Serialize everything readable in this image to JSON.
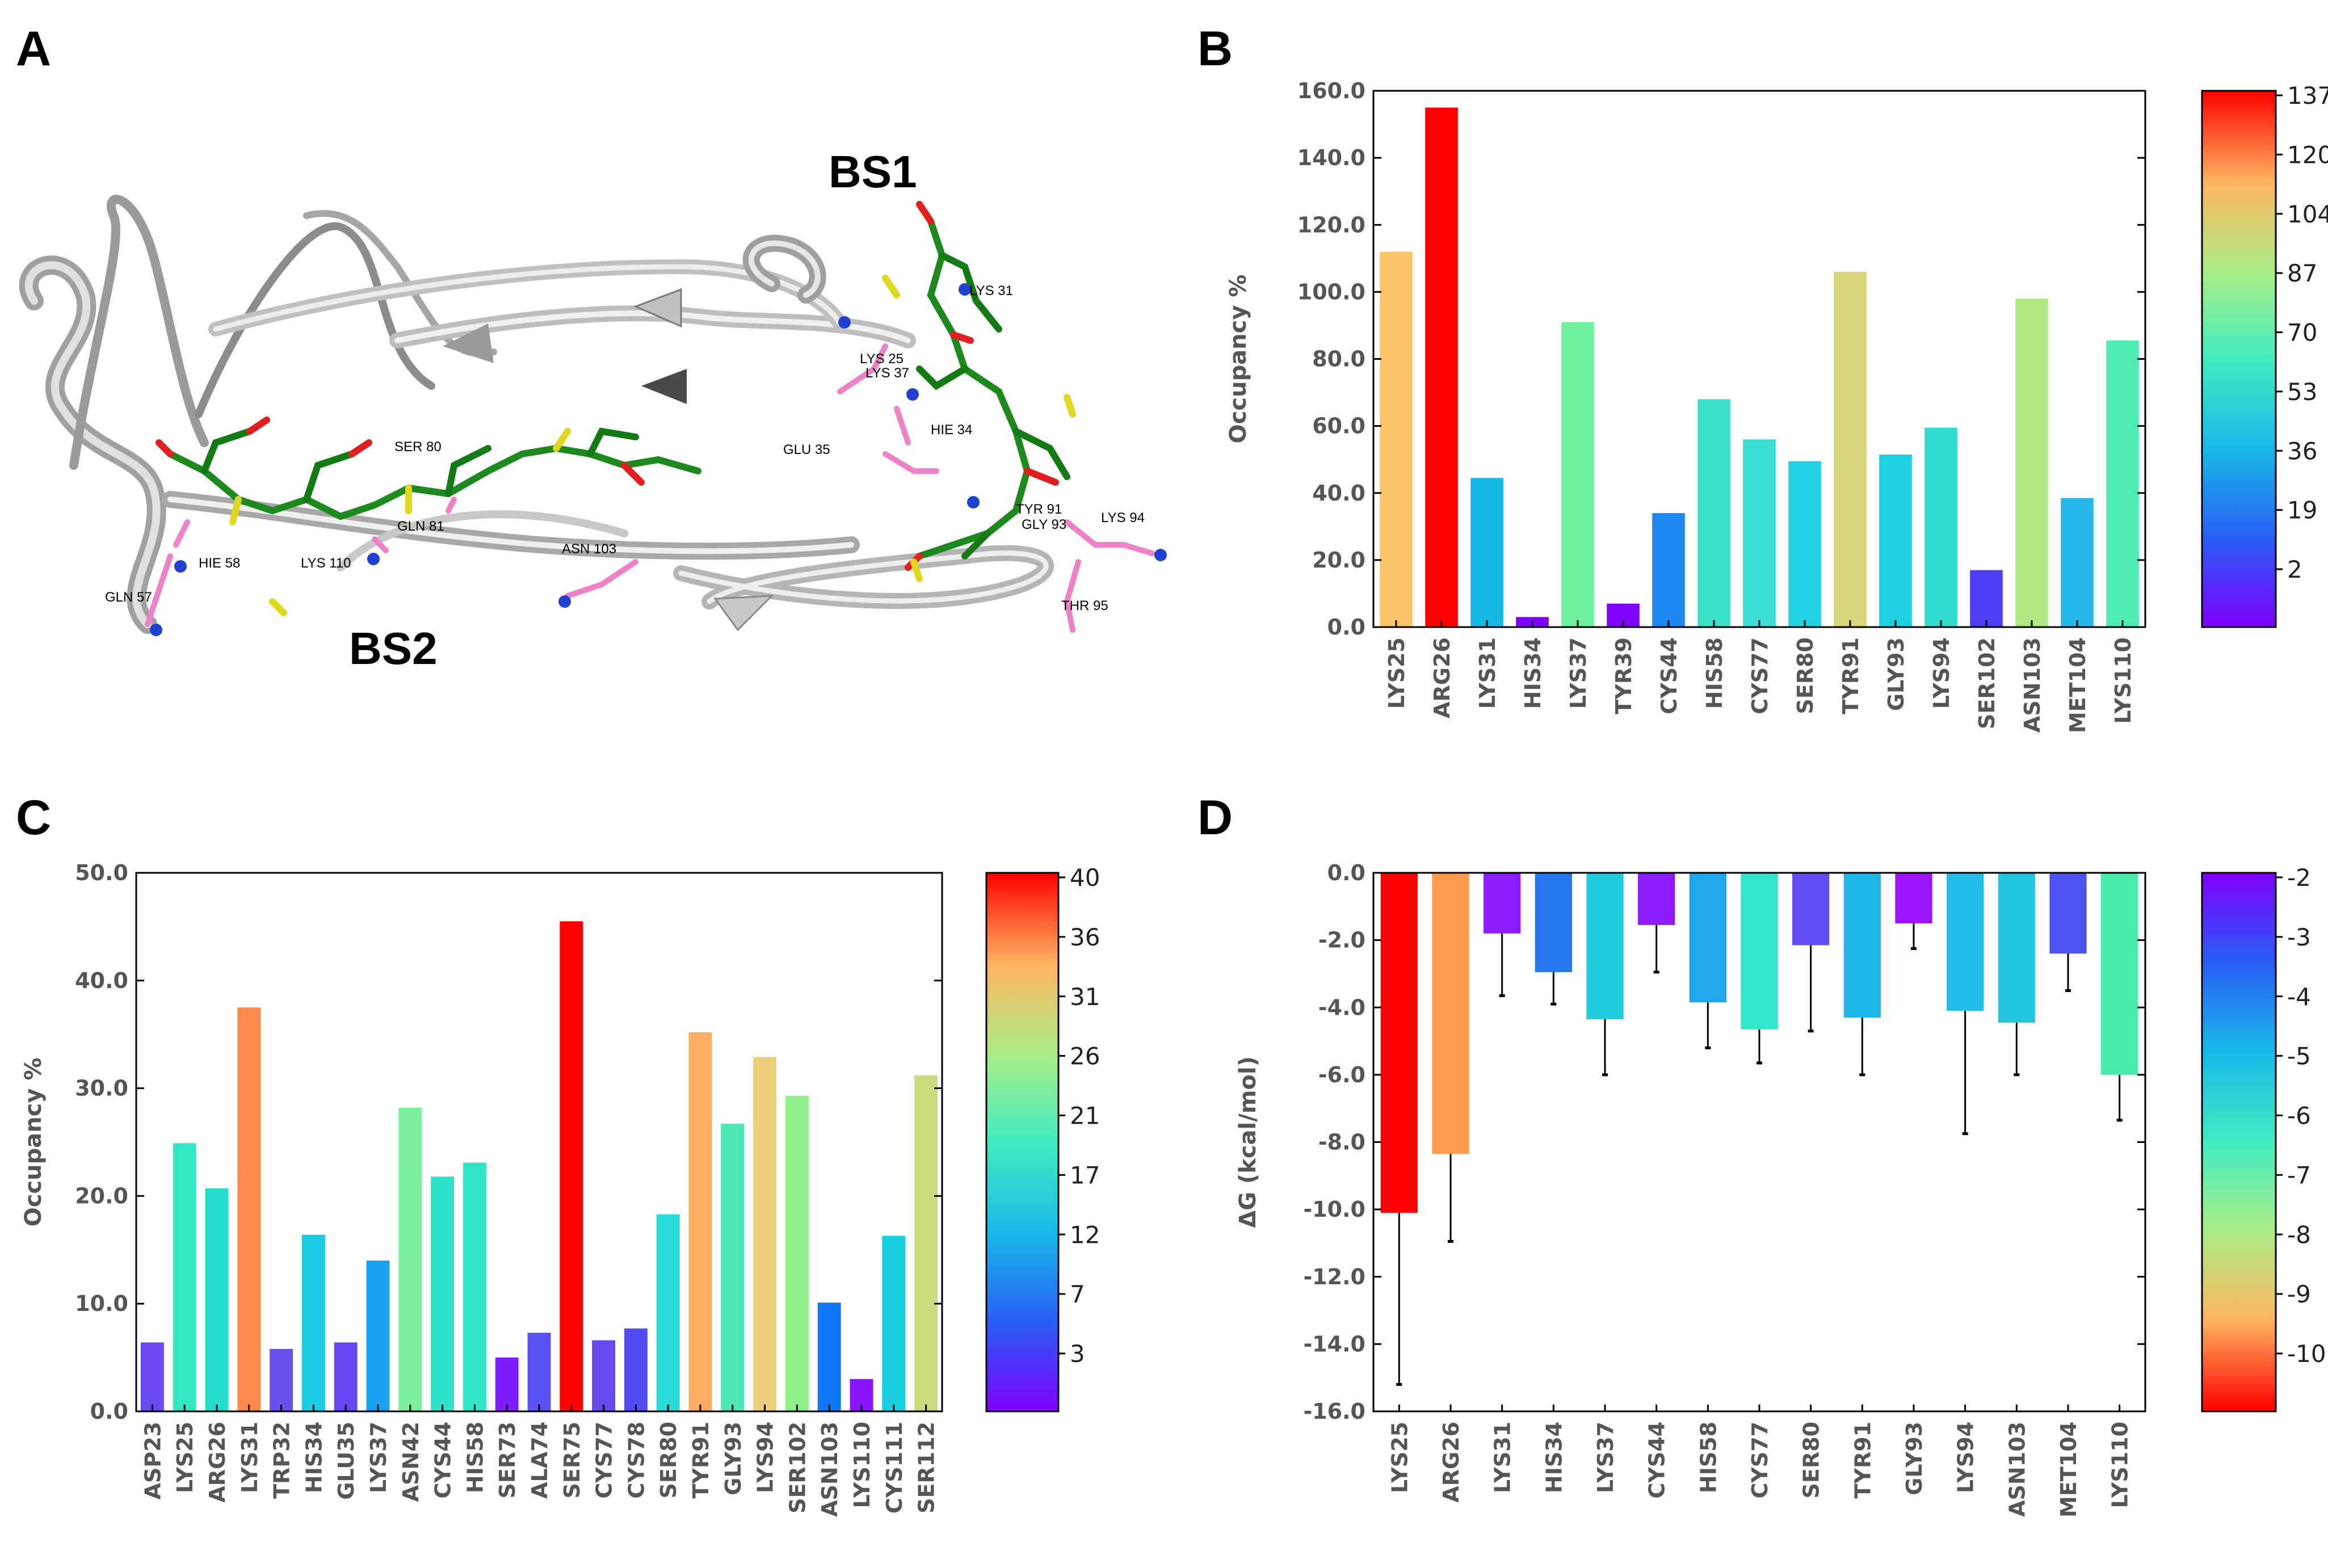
{
  "panels": [
    {
      "letter": "A"
    },
    {
      "letter": "B"
    },
    {
      "letter": "C"
    },
    {
      "letter": "D"
    }
  ],
  "structure": {
    "binding_sites": [
      "BS1",
      "BS2"
    ],
    "residue_labels": [
      "LYS 31",
      "LYS 25",
      "LYS 37",
      "HIE 34",
      "GLU 35",
      "TYR 91",
      "GLY 93",
      "LYS 94",
      "THR 95",
      "ASN 103",
      "SER 80",
      "GLN 81",
      "LYS 110",
      "HIE 58",
      "GLN 57"
    ]
  },
  "chart_data": [
    {
      "panel": "B",
      "type": "bar",
      "ylabel": "Occupancy %",
      "ylim": [
        0,
        160
      ],
      "yticks": [
        "0.0",
        "20.0",
        "40.0",
        "60.0",
        "80.0",
        "100.0",
        "120.0",
        "140.0",
        "160.0"
      ],
      "categories": [
        "LYS25",
        "ARG26",
        "LYS31",
        "HIS34",
        "LYS37",
        "TYR39",
        "CYS44",
        "HIS58",
        "CYS77",
        "SER80",
        "TYR91",
        "GLY93",
        "LYS94",
        "SER102",
        "ASN103",
        "MET104",
        "LYS110"
      ],
      "values": [
        112,
        155,
        44.5,
        3,
        91,
        7,
        34,
        68,
        56,
        49.5,
        106,
        51.5,
        59.5,
        17,
        98,
        38.5,
        85.5
      ],
      "colors": [
        "#fcc468",
        "#ff0000",
        "#15b7e6",
        "#8000ff",
        "#6df29b",
        "#7f03ff",
        "#1b88f4",
        "#3ae0c6",
        "#3adcd3",
        "#1ed2e3",
        "#d8d67a",
        "#1cd0e1",
        "#30dcd0",
        "#4d3ef5",
        "#b1ea82",
        "#22b6e9",
        "#4bedb3"
      ],
      "colorbar": {
        "ticks": [
          "137",
          "120",
          "104",
          "87",
          "70",
          "53",
          "36",
          "19",
          "2"
        ],
        "range": [
          2,
          137
        ],
        "reversed": false
      }
    },
    {
      "panel": "C",
      "type": "bar",
      "ylabel": "Occupancy %",
      "ylim": [
        0,
        50
      ],
      "yticks": [
        "0.0",
        "10.0",
        "20.0",
        "30.0",
        "40.0",
        "50.0"
      ],
      "categories": [
        "ASP23",
        "LYS25",
        "ARG26",
        "LYS31",
        "TRP32",
        "HIS34",
        "GLU35",
        "LYS37",
        "ASN42",
        "CYS44",
        "HIS58",
        "SER73",
        "ALA74",
        "SER75",
        "CYS77",
        "CYS78",
        "SER80",
        "TYR91",
        "GLY93",
        "LYS94",
        "SER102",
        "ASN103",
        "LYS110",
        "CYS111",
        "SER112"
      ],
      "values": [
        6.4,
        24.9,
        20.7,
        37.5,
        5.8,
        16.4,
        6.4,
        14.0,
        28.2,
        21.8,
        23.1,
        5.0,
        7.3,
        45.5,
        6.6,
        7.7,
        18.3,
        35.2,
        26.7,
        32.9,
        29.3,
        10.1,
        3.0,
        16.3,
        31.2
      ],
      "colors": [
        "#6a47ef",
        "#33e6c2",
        "#20deca",
        "#ff8a4e",
        "#6a4ff0",
        "#1ecde5",
        "#6646f0",
        "#1aa2f0",
        "#7af09a",
        "#2de2ca",
        "#30e3c5",
        "#7e1cff",
        "#5a52f2",
        "#ff0000",
        "#6a48f0",
        "#544cf0",
        "#27dcd8",
        "#ffad60",
        "#50e7b8",
        "#eccf78",
        "#8ff08a",
        "#0e78f8",
        "#8a16ff",
        "#18d0e0",
        "#c9dd7e"
      ],
      "colorbar": {
        "ticks": [
          "40",
          "36",
          "31",
          "26",
          "21",
          "17",
          "12",
          "7",
          "3"
        ],
        "range": [
          3,
          40
        ],
        "reversed": false
      }
    },
    {
      "panel": "D",
      "type": "bar",
      "ylabel": "ΔG (kcal/mol)",
      "ylim": [
        -16,
        0
      ],
      "yticks": [
        "0.0",
        "-2.0",
        "-4.0",
        "-6.0",
        "-8.0",
        "-10.0",
        "-12.0",
        "-14.0",
        "-16.0"
      ],
      "categories": [
        "LYS25",
        "ARG26",
        "LYS31",
        "HIS34",
        "LYS37",
        "CYS44",
        "HIS58",
        "CYS77",
        "SER80",
        "TYR91",
        "GLY93",
        "LYS94",
        "ASN103",
        "MET104",
        "LYS110"
      ],
      "values": [
        -10.1,
        -8.35,
        -1.8,
        -2.95,
        -4.35,
        -1.55,
        -3.85,
        -4.65,
        -2.15,
        -4.3,
        -1.5,
        -4.1,
        -4.45,
        -2.4,
        -6.0
      ],
      "errors": [
        5.1,
        2.6,
        1.85,
        0.95,
        1.65,
        1.4,
        1.35,
        1.0,
        2.55,
        1.7,
        0.75,
        3.65,
        1.55,
        1.1,
        1.35
      ],
      "colors": [
        "#ff0000",
        "#ff9a4c",
        "#8a1cff",
        "#2677f2",
        "#20ccde",
        "#8a1cff",
        "#1fa6ec",
        "#33e4cc",
        "#5f4cf2",
        "#1fb8e6",
        "#9a14ff",
        "#25bce8",
        "#22c6e0",
        "#4e52f0",
        "#45ecaa"
      ],
      "colorbar": {
        "ticks": [
          "-2",
          "-3",
          "-4",
          "-5",
          "-6",
          "-7",
          "-8",
          "-9",
          "-10"
        ],
        "range": [
          -10,
          -1.5
        ],
        "reversed": true
      }
    }
  ]
}
